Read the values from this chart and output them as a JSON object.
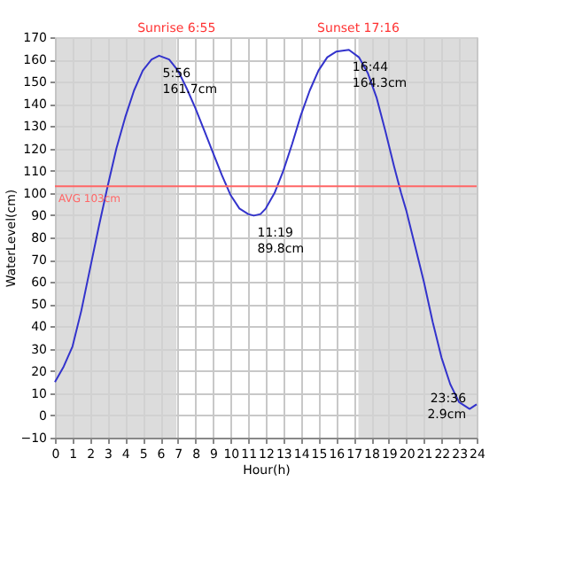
{
  "chart_data": {
    "type": "line",
    "xlabel": "Hour(h)",
    "ylabel": "WaterLevel(cm)",
    "series": [
      {
        "color": "#3333cc",
        "x": [
          0,
          0.5,
          1,
          1.5,
          2,
          2.5,
          3,
          3.5,
          4,
          4.5,
          5,
          5.5,
          5.93,
          6.5,
          7,
          7.5,
          8,
          8.5,
          9,
          9.5,
          10,
          10.5,
          11,
          11.32,
          11.7,
          12,
          12.5,
          13,
          13.5,
          14,
          14.5,
          15,
          15.5,
          16,
          16.73,
          17.3,
          17.8,
          18.3,
          18.8,
          19.3,
          19.7,
          20,
          20.5,
          21,
          21.5,
          22,
          22.5,
          23,
          23.6,
          24
        ],
        "values": [
          15,
          22,
          31,
          47,
          66,
          85,
          103,
          120,
          134,
          146,
          155,
          160,
          161.7,
          160,
          155,
          147,
          138,
          128,
          118,
          108,
          99,
          93,
          90.5,
          89.8,
          90.5,
          93,
          100,
          110,
          122,
          135,
          146,
          155,
          161,
          163.5,
          164.3,
          161,
          154,
          143,
          128,
          112,
          100,
          92,
          76,
          60,
          42,
          26,
          14,
          6,
          2.9,
          5
        ]
      }
    ],
    "xlim": [
      0,
      24
    ],
    "xticks": [
      0,
      1,
      2,
      3,
      4,
      5,
      6,
      7,
      8,
      9,
      10,
      11,
      12,
      13,
      14,
      15,
      16,
      17,
      18,
      19,
      20,
      21,
      22,
      23,
      24
    ],
    "ylim": [
      -10,
      170
    ],
    "yticks": [
      -10,
      0,
      10,
      20,
      30,
      40,
      50,
      60,
      70,
      80,
      90,
      100,
      110,
      120,
      130,
      140,
      150,
      160,
      170
    ],
    "grid": true,
    "line_style": "solid",
    "bands": [
      {
        "axis": "x",
        "from": 0,
        "to": 6.92,
        "label": "Sunrise 6:55",
        "color": "#d3d3d3"
      },
      {
        "axis": "x",
        "from": 17.27,
        "to": 24,
        "label": "Sunset 17:16",
        "color": "#d3d3d3"
      }
    ],
    "ref_lines": [
      {
        "axis": "y",
        "value": 103,
        "label": "AVG 103cm",
        "color": "#ff6666"
      }
    ],
    "annotations": [
      {
        "text": "5:56\n161.7cm",
        "x": 5.93,
        "y": 161.7
      },
      {
        "text": "11:19\n89.8cm",
        "x": 11.32,
        "y": 89.8
      },
      {
        "text": "16:44\n164.3cm",
        "x": 16.73,
        "y": 164.3
      },
      {
        "text": "23:36\n2.9cm",
        "x": 23.6,
        "y": 2.9
      }
    ]
  }
}
